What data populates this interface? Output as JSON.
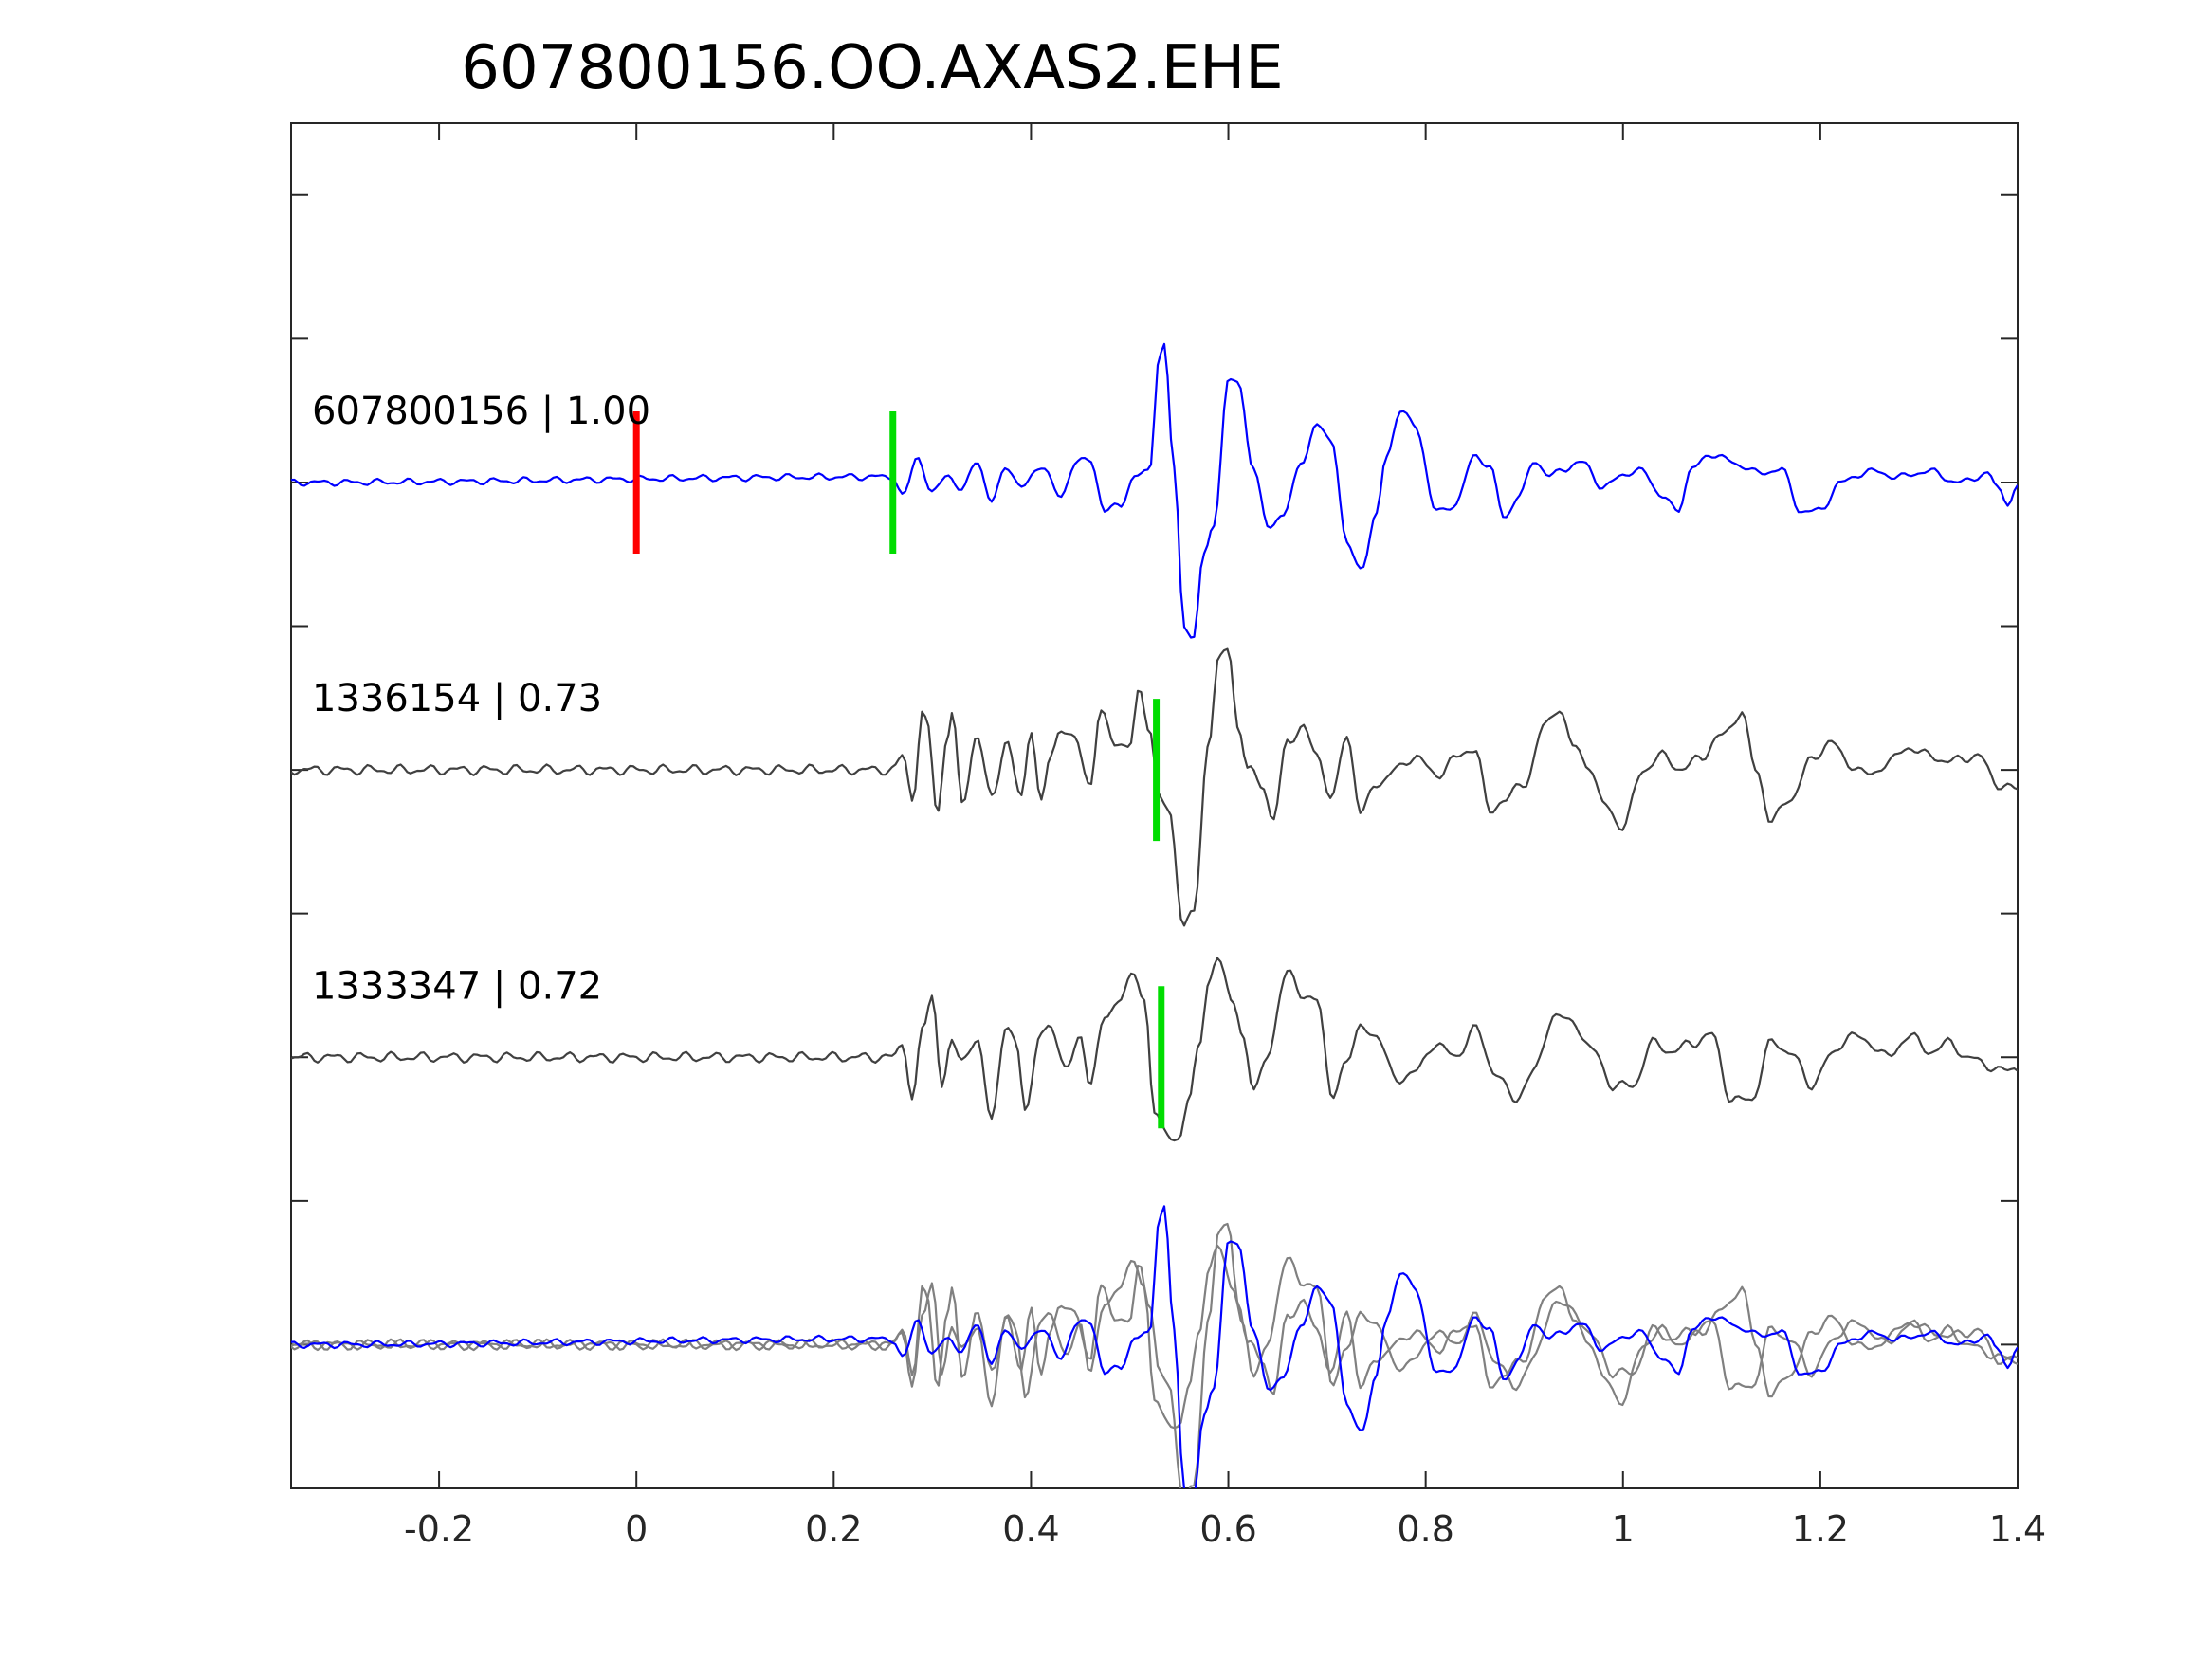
{
  "chart_data": {
    "type": "line",
    "title": "607800156.OO.AXAS2.EHE",
    "xlabel": "",
    "ylabel": "",
    "xlim": [
      -0.35,
      1.4
    ],
    "ylim": [
      0.5,
      5.25
    ],
    "x_ticks": [
      -0.2,
      0,
      0.2,
      0.4,
      0.6,
      0.8,
      1,
      1.2,
      1.4
    ],
    "x_tick_labels": [
      "-0.2",
      "0",
      "0.2",
      "0.4",
      "0.6",
      "0.8",
      "1",
      "1.2",
      "1.4"
    ],
    "y_ticks": [
      1,
      1.5,
      2,
      2.5,
      3,
      3.5,
      4,
      4.5,
      5
    ],
    "grid": false,
    "colors": {
      "template": "#0000ff",
      "match": "#404040",
      "overlay_match": "#808080",
      "pick_red": "#ff0000",
      "pick_green": "#00dd00",
      "axis": "#262626"
    },
    "series": [
      {
        "role": "template",
        "label": "607800156 | 1.00",
        "baseline": 4,
        "color": "#0000ff",
        "knots": [
          [
            -0.35,
            0
          ],
          [
            0.26,
            0.02
          ],
          [
            0.27,
            -0.05
          ],
          [
            0.285,
            0.09
          ],
          [
            0.3,
            -0.04
          ],
          [
            0.315,
            0.03
          ],
          [
            0.33,
            -0.03
          ],
          [
            0.345,
            0.08
          ],
          [
            0.36,
            -0.07
          ],
          [
            0.375,
            0.06
          ],
          [
            0.39,
            -0.02
          ],
          [
            0.41,
            0.06
          ],
          [
            0.43,
            -0.05
          ],
          [
            0.445,
            0.07
          ],
          [
            0.46,
            0.08
          ],
          [
            0.475,
            -0.1
          ],
          [
            0.49,
            -0.08
          ],
          [
            0.505,
            0.02
          ],
          [
            0.52,
            0.04
          ],
          [
            0.53,
            0.45
          ],
          [
            0.535,
            0.48
          ],
          [
            0.545,
            0.05
          ],
          [
            0.555,
            -0.5
          ],
          [
            0.565,
            -0.55
          ],
          [
            0.575,
            -0.25
          ],
          [
            0.585,
            -0.15
          ],
          [
            0.6,
            0.35
          ],
          [
            0.61,
            0.36
          ],
          [
            0.625,
            0.05
          ],
          [
            0.64,
            -0.15
          ],
          [
            0.655,
            -0.12
          ],
          [
            0.675,
            0.08
          ],
          [
            0.69,
            0.2
          ],
          [
            0.705,
            0.15
          ],
          [
            0.72,
            -0.22
          ],
          [
            0.735,
            -0.3
          ],
          [
            0.75,
            -0.12
          ],
          [
            0.76,
            0.1
          ],
          [
            0.775,
            0.25
          ],
          [
            0.79,
            0.2
          ],
          [
            0.81,
            -0.1
          ],
          [
            0.83,
            -0.08
          ],
          [
            0.85,
            0.1
          ],
          [
            0.865,
            0.05
          ],
          [
            0.88,
            -0.12
          ],
          [
            0.895,
            -0.05
          ],
          [
            0.91,
            0.08
          ],
          [
            0.925,
            0.02
          ],
          [
            0.94,
            0.05
          ],
          [
            0.96,
            0.07
          ],
          [
            0.98,
            -0.02
          ],
          [
            1.0,
            0.03
          ],
          [
            1.02,
            0.04
          ],
          [
            1.04,
            -0.05
          ],
          [
            1.055,
            -0.1
          ],
          [
            1.07,
            0.05
          ],
          [
            1.09,
            0.1
          ],
          [
            1.12,
            0.06
          ],
          [
            1.14,
            0.03
          ],
          [
            1.16,
            0.05
          ],
          [
            1.18,
            -0.1
          ],
          [
            1.2,
            -0.1
          ],
          [
            1.22,
            0.0
          ],
          [
            1.25,
            0.04
          ],
          [
            1.28,
            0.02
          ],
          [
            1.31,
            0.04
          ],
          [
            1.34,
            0.0
          ],
          [
            1.37,
            0.03
          ],
          [
            1.38,
            -0.02
          ],
          [
            1.39,
            -0.07
          ],
          [
            1.4,
            -0.02
          ]
        ],
        "noise": 0.008
      },
      {
        "role": "match",
        "label": "1336154 | 0.73",
        "baseline": 3,
        "color": "#404040",
        "knots": [
          [
            -0.35,
            0
          ],
          [
            0.26,
            0
          ],
          [
            0.27,
            0.05
          ],
          [
            0.28,
            -0.1
          ],
          [
            0.29,
            0.2
          ],
          [
            0.295,
            0.15
          ],
          [
            0.305,
            -0.15
          ],
          [
            0.315,
            0.12
          ],
          [
            0.32,
            0.2
          ],
          [
            0.33,
            -0.12
          ],
          [
            0.345,
            0.12
          ],
          [
            0.36,
            -0.1
          ],
          [
            0.375,
            0.1
          ],
          [
            0.39,
            -0.1
          ],
          [
            0.4,
            0.15
          ],
          [
            0.41,
            -0.12
          ],
          [
            0.42,
            0.05
          ],
          [
            0.43,
            0.15
          ],
          [
            0.445,
            0.1
          ],
          [
            0.46,
            -0.05
          ],
          [
            0.47,
            0.2
          ],
          [
            0.485,
            0.1
          ],
          [
            0.5,
            0.08
          ],
          [
            0.51,
            0.28
          ],
          [
            0.52,
            0.15
          ],
          [
            0.53,
            -0.1
          ],
          [
            0.54,
            -0.15
          ],
          [
            0.555,
            -0.55
          ],
          [
            0.565,
            -0.5
          ],
          [
            0.58,
            0.1
          ],
          [
            0.59,
            0.38
          ],
          [
            0.6,
            0.43
          ],
          [
            0.61,
            0.15
          ],
          [
            0.62,
            0.0
          ],
          [
            0.635,
            -0.05
          ],
          [
            0.645,
            -0.18
          ],
          [
            0.66,
            0.1
          ],
          [
            0.675,
            0.15
          ],
          [
            0.69,
            0.05
          ],
          [
            0.705,
            -0.1
          ],
          [
            0.72,
            0.12
          ],
          [
            0.735,
            -0.15
          ],
          [
            0.75,
            -0.05
          ],
          [
            0.77,
            0.0
          ],
          [
            0.79,
            0.05
          ],
          [
            0.81,
            -0.02
          ],
          [
            0.83,
            0.04
          ],
          [
            0.85,
            0.08
          ],
          [
            0.865,
            -0.15
          ],
          [
            0.88,
            -0.1
          ],
          [
            0.9,
            -0.05
          ],
          [
            0.92,
            0.15
          ],
          [
            0.935,
            0.22
          ],
          [
            0.95,
            0.08
          ],
          [
            0.965,
            0.02
          ],
          [
            0.98,
            -0.12
          ],
          [
            1.0,
            -0.2
          ],
          [
            1.02,
            0.0
          ],
          [
            1.04,
            0.05
          ],
          [
            1.06,
            0.0
          ],
          [
            1.08,
            0.05
          ],
          [
            1.1,
            0.12
          ],
          [
            1.12,
            0.2
          ],
          [
            1.135,
            0.0
          ],
          [
            1.15,
            -0.18
          ],
          [
            1.17,
            -0.1
          ],
          [
            1.19,
            0.03
          ],
          [
            1.21,
            0.1
          ],
          [
            1.23,
            0.02
          ],
          [
            1.25,
            -0.02
          ],
          [
            1.27,
            0.03
          ],
          [
            1.29,
            0.08
          ],
          [
            1.31,
            0.05
          ],
          [
            1.33,
            0.03
          ],
          [
            1.36,
            0.05
          ],
          [
            1.38,
            -0.05
          ],
          [
            1.4,
            -0.07
          ]
        ],
        "noise": 0.012
      },
      {
        "role": "match",
        "label": "1333347 | 0.72",
        "baseline": 2,
        "color": "#404040",
        "knots": [
          [
            -0.35,
            0
          ],
          [
            0.26,
            0
          ],
          [
            0.27,
            0.05
          ],
          [
            0.28,
            -0.15
          ],
          [
            0.29,
            0.1
          ],
          [
            0.3,
            0.22
          ],
          [
            0.31,
            -0.1
          ],
          [
            0.32,
            0.05
          ],
          [
            0.33,
            0.0
          ],
          [
            0.345,
            0.05
          ],
          [
            0.36,
            -0.2
          ],
          [
            0.375,
            0.1
          ],
          [
            0.385,
            0.05
          ],
          [
            0.395,
            -0.18
          ],
          [
            0.41,
            0.08
          ],
          [
            0.42,
            0.12
          ],
          [
            0.435,
            -0.05
          ],
          [
            0.45,
            0.08
          ],
          [
            0.46,
            -0.1
          ],
          [
            0.475,
            0.15
          ],
          [
            0.49,
            0.2
          ],
          [
            0.505,
            0.3
          ],
          [
            0.515,
            0.2
          ],
          [
            0.525,
            -0.2
          ],
          [
            0.535,
            -0.25
          ],
          [
            0.55,
            -0.3
          ],
          [
            0.56,
            -0.15
          ],
          [
            0.57,
            0.05
          ],
          [
            0.58,
            0.25
          ],
          [
            0.59,
            0.35
          ],
          [
            0.605,
            0.2
          ],
          [
            0.615,
            0.05
          ],
          [
            0.625,
            -0.1
          ],
          [
            0.64,
            0.0
          ],
          [
            0.66,
            0.32
          ],
          [
            0.675,
            0.2
          ],
          [
            0.69,
            0.22
          ],
          [
            0.705,
            -0.15
          ],
          [
            0.72,
            0.0
          ],
          [
            0.735,
            0.1
          ],
          [
            0.75,
            0.08
          ],
          [
            0.77,
            -0.08
          ],
          [
            0.79,
            -0.05
          ],
          [
            0.81,
            0.05
          ],
          [
            0.83,
            0.0
          ],
          [
            0.85,
            0.1
          ],
          [
            0.87,
            -0.05
          ],
          [
            0.89,
            -0.15
          ],
          [
            0.91,
            -0.05
          ],
          [
            0.93,
            0.15
          ],
          [
            0.95,
            0.12
          ],
          [
            0.97,
            0.02
          ],
          [
            0.99,
            -0.1
          ],
          [
            1.01,
            -0.1
          ],
          [
            1.03,
            0.05
          ],
          [
            1.05,
            0.02
          ],
          [
            1.07,
            0.05
          ],
          [
            1.09,
            0.08
          ],
          [
            1.11,
            -0.15
          ],
          [
            1.13,
            -0.15
          ],
          [
            1.15,
            0.05
          ],
          [
            1.17,
            0.02
          ],
          [
            1.19,
            -0.1
          ],
          [
            1.21,
            0.0
          ],
          [
            1.23,
            0.08
          ],
          [
            1.25,
            0.05
          ],
          [
            1.27,
            0.0
          ],
          [
            1.29,
            0.08
          ],
          [
            1.31,
            0.02
          ],
          [
            1.33,
            0.05
          ],
          [
            1.35,
            0.0
          ],
          [
            1.37,
            -0.03
          ],
          [
            1.39,
            -0.05
          ],
          [
            1.4,
            -0.04
          ]
        ],
        "noise": 0.012
      }
    ],
    "overlay": {
      "baseline": 1,
      "series_roles": [
        "template",
        "match",
        "match"
      ],
      "colors": [
        "#0000ff",
        "#808080",
        "#808080"
      ]
    },
    "picks": [
      {
        "row_baseline": 4,
        "x": 0.0,
        "color": "#ff0000"
      },
      {
        "row_baseline": 4,
        "x": 0.26,
        "color": "#00dd00"
      },
      {
        "row_baseline": 3,
        "x": 0.527,
        "color": "#00dd00"
      },
      {
        "row_baseline": 2,
        "x": 0.532,
        "color": "#00dd00"
      }
    ]
  }
}
